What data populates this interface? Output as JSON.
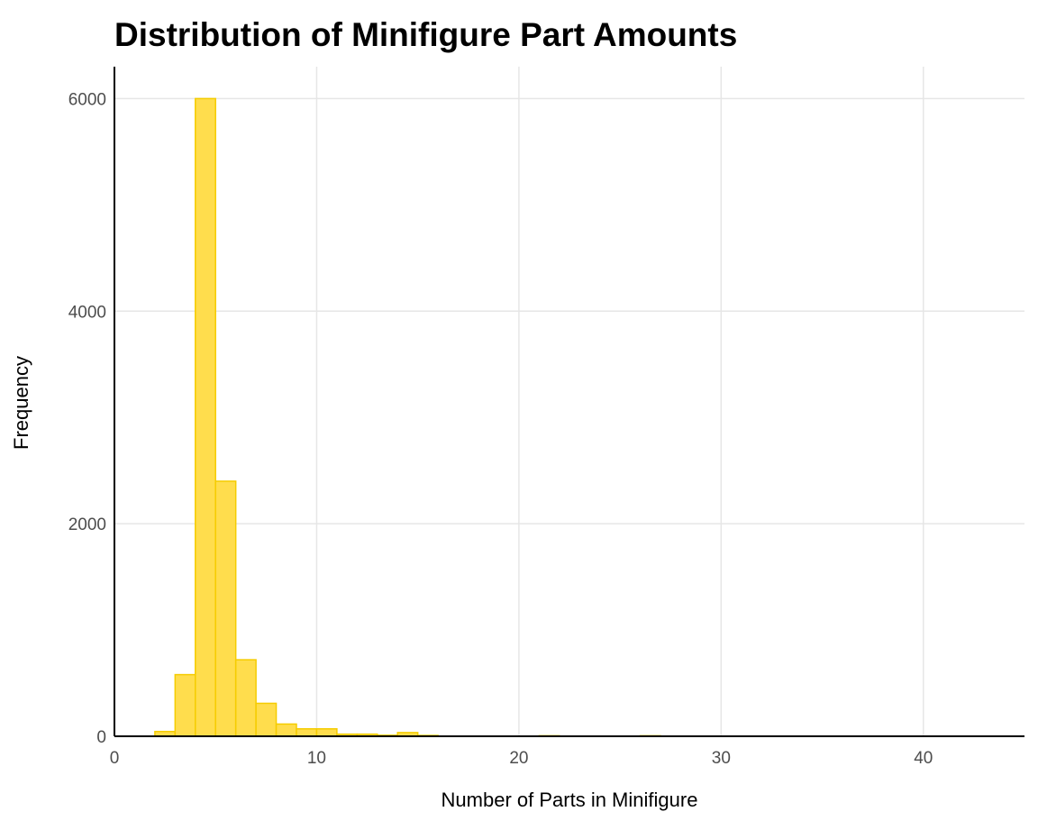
{
  "chart_data": {
    "type": "bar",
    "title": "Distribution of Minifigure Part Amounts",
    "xlabel": "Number of Parts in Minifigure",
    "ylabel": "Frequency",
    "xlim": [
      0,
      45
    ],
    "ylim": [
      0,
      6300
    ],
    "xticks": [
      0,
      10,
      20,
      30,
      40
    ],
    "yticks": [
      0,
      2000,
      4000,
      6000
    ],
    "grid": true,
    "legend": "none",
    "bar_color": "#ffdd4d",
    "bar_edge_color": "#f5cc00",
    "bins": [
      {
        "x0": 2,
        "x1": 3,
        "count": 45
      },
      {
        "x0": 3,
        "x1": 4,
        "count": 580
      },
      {
        "x0": 4,
        "x1": 5,
        "count": 6000
      },
      {
        "x0": 5,
        "x1": 6,
        "count": 2400
      },
      {
        "x0": 6,
        "x1": 7,
        "count": 720
      },
      {
        "x0": 7,
        "x1": 8,
        "count": 310
      },
      {
        "x0": 8,
        "x1": 9,
        "count": 115
      },
      {
        "x0": 9,
        "x1": 10,
        "count": 70
      },
      {
        "x0": 10,
        "x1": 11,
        "count": 70
      },
      {
        "x0": 11,
        "x1": 12,
        "count": 20
      },
      {
        "x0": 12,
        "x1": 13,
        "count": 20
      },
      {
        "x0": 13,
        "x1": 14,
        "count": 10
      },
      {
        "x0": 14,
        "x1": 15,
        "count": 35
      },
      {
        "x0": 15,
        "x1": 16,
        "count": 8
      },
      {
        "x0": 21,
        "x1": 22,
        "count": 5
      },
      {
        "x0": 26,
        "x1": 27,
        "count": 5
      }
    ]
  }
}
